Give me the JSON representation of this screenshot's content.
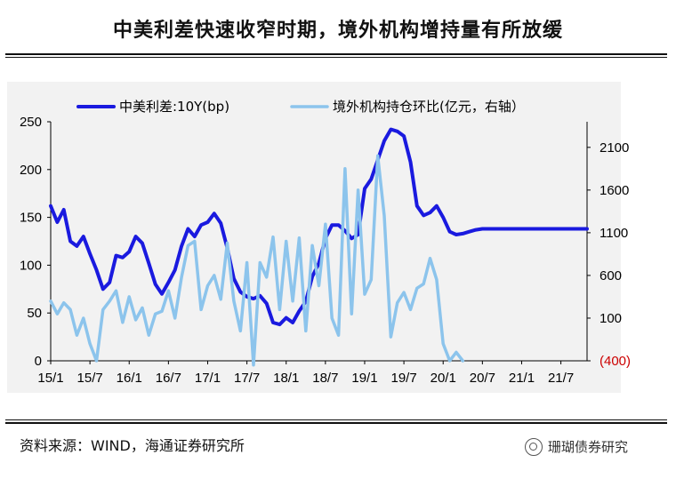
{
  "page": {
    "title": "中美利差快速收窄时期，境外机构增持量有所放缓",
    "source": "资料来源：WIND，海通证券研究所",
    "watermark": "珊瑚债券研究"
  },
  "colors": {
    "spread": "#1a1adf",
    "holdings": "#8cc4ec",
    "neg_tick": "#cc0000",
    "axis": "#000000"
  },
  "chart_data": {
    "type": "line",
    "title": "中美利差快速收窄时期，境外机构增持量有所放缓",
    "categories": [
      "15/1",
      "15/7",
      "16/1",
      "16/7",
      "17/1",
      "17/7",
      "18/1",
      "18/7",
      "19/1",
      "19/7",
      "20/1",
      "20/7",
      "21/1",
      "21/7"
    ],
    "x_index_range": [
      0,
      82
    ],
    "y_left": {
      "min": 0,
      "max": 250,
      "ticks": [
        "0",
        "50",
        "100",
        "150",
        "200",
        "250"
      ]
    },
    "y_right": {
      "min": -400,
      "max": 2400,
      "ticks": [
        "(400)",
        "100",
        "600",
        "1100",
        "1600",
        "2100"
      ]
    },
    "series": [
      {
        "name": "中美利差:10Y(bp)",
        "axis": "left",
        "x": [
          0,
          1,
          2,
          3,
          4,
          5,
          6,
          7,
          8,
          9,
          10,
          11,
          12,
          13,
          14,
          15,
          16,
          17,
          18,
          19,
          20,
          21,
          22,
          23,
          24,
          25,
          26,
          27,
          28,
          29,
          30,
          31,
          32,
          33,
          34,
          35,
          36,
          37,
          38,
          39,
          40,
          41,
          42,
          43,
          44,
          45,
          46,
          47,
          48,
          49,
          50,
          51,
          52,
          53,
          54,
          55,
          56,
          57,
          58,
          59,
          60,
          61,
          62,
          63,
          64,
          65,
          66,
          67,
          68,
          69,
          70,
          71,
          72,
          73,
          74,
          75,
          76,
          77,
          78,
          79,
          80,
          81,
          82
        ],
        "values": [
          162,
          145,
          158,
          125,
          120,
          130,
          112,
          95,
          75,
          82,
          110,
          108,
          114,
          130,
          123,
          102,
          80,
          70,
          82,
          95,
          120,
          138,
          130,
          142,
          145,
          154,
          144,
          118,
          86,
          72,
          67,
          65,
          68,
          60,
          40,
          38,
          45,
          40,
          52,
          62,
          88,
          102,
          128,
          142,
          142,
          136,
          128,
          132,
          180,
          190,
          210,
          230,
          242,
          240,
          235,
          208,
          162,
          152,
          155,
          162,
          150,
          135,
          132,
          133,
          135,
          137,
          138,
          138,
          138,
          138,
          138,
          138,
          138,
          138,
          138,
          138,
          138,
          138,
          138,
          138,
          138,
          138,
          138
        ]
      },
      {
        "name": "境外机构持仓环比(亿元，右轴）",
        "axis": "right",
        "x": [
          0,
          1,
          2,
          3,
          4,
          5,
          6,
          7,
          8,
          9,
          10,
          11,
          12,
          13,
          14,
          15,
          16,
          17,
          18,
          19,
          20,
          21,
          22,
          23,
          24,
          25,
          26,
          27,
          28,
          29,
          30,
          31,
          32,
          33,
          34,
          35,
          36,
          37,
          38,
          39,
          40,
          41,
          42,
          43,
          44,
          45,
          46,
          47,
          48,
          49,
          50,
          51,
          52,
          53,
          54,
          55,
          56,
          57,
          58,
          59,
          60,
          61,
          62,
          63
        ],
        "values": [
          300,
          150,
          280,
          200,
          -100,
          100,
          -200,
          -400,
          200,
          300,
          420,
          50,
          350,
          80,
          220,
          -100,
          150,
          180,
          420,
          100,
          580,
          950,
          1000,
          200,
          480,
          600,
          320,
          980,
          300,
          -50,
          750,
          -450,
          750,
          580,
          1050,
          200,
          1000,
          300,
          1040,
          -50,
          950,
          480,
          1200,
          100,
          -100,
          1850,
          150,
          1600,
          380,
          550,
          2000,
          1300,
          -120,
          280,
          400,
          200,
          450,
          500,
          800,
          550,
          -200,
          -400,
          -300,
          -400
        ]
      }
    ],
    "legend": [
      "中美利差:10Y(bp)",
      "境外机构持仓环比(亿元，右轴）"
    ],
    "legend_position": "top",
    "grid": false
  }
}
